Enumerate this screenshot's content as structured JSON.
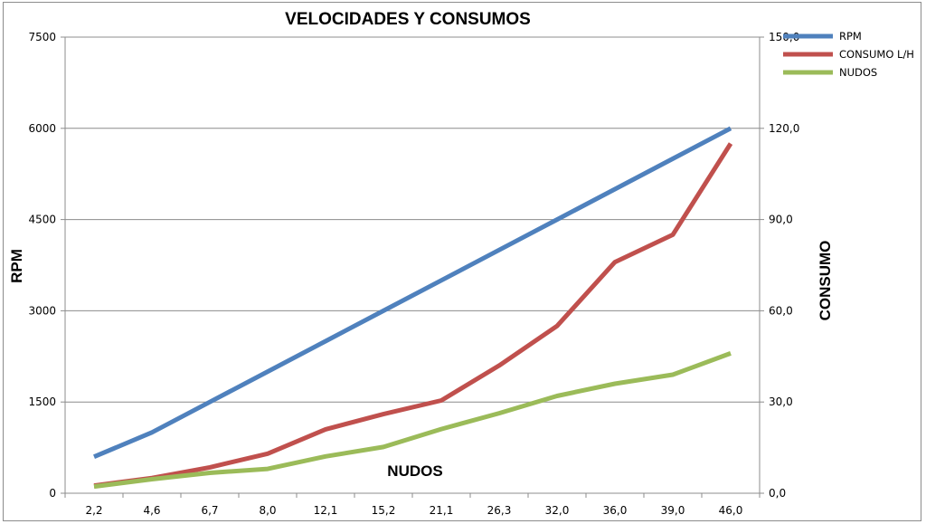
{
  "chart_data": {
    "type": "line",
    "title": "VELOCIDADES Y CONSUMOS",
    "xlabel": "NUDOS",
    "ylabel": "RPM",
    "y2label": "CONSUMO",
    "categories": [
      "2,2",
      "4,6",
      "6,7",
      "8,0",
      "12,1",
      "15,2",
      "21,1",
      "26,3",
      "32,0",
      "36,0",
      "39,0",
      "46,0"
    ],
    "ylim": [
      0,
      7500
    ],
    "y2lim": [
      0,
      150
    ],
    "yticks": [
      "0",
      "1500",
      "3000",
      "4500",
      "6000",
      "7500"
    ],
    "y2ticks": [
      "0,0",
      "30,0",
      "60,0",
      "90,0",
      "120,0",
      "150,0"
    ],
    "grid": true,
    "legend_position": "top-right",
    "series": [
      {
        "name": "RPM",
        "axis": "left",
        "color": "#4f81bd",
        "values": [
          600,
          1000,
          1500,
          2000,
          2500,
          3000,
          3500,
          4000,
          4500,
          5000,
          5500,
          6000
        ]
      },
      {
        "name": "CONSUMO L/H",
        "axis": "right",
        "color": "#c0504d",
        "values": [
          2.5,
          5,
          8.5,
          13,
          21,
          26,
          30.5,
          42,
          55,
          76,
          85,
          115
        ]
      },
      {
        "name": "NUDOS",
        "axis": "right",
        "color": "#9bbb59",
        "values": [
          2.2,
          4.6,
          6.7,
          8.0,
          12.1,
          15.2,
          21.1,
          26.3,
          32.0,
          36.0,
          39.0,
          46.0
        ]
      }
    ]
  }
}
